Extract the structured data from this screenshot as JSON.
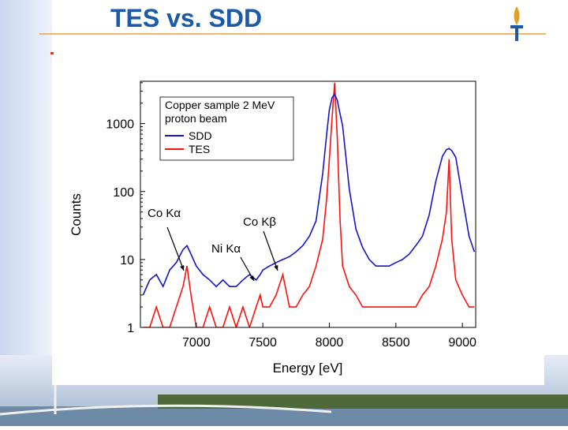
{
  "slide_title": "TES vs. SDD",
  "chart_data": {
    "type": "line",
    "legend_title": [
      "Copper sample 2 MeV",
      "proton beam"
    ],
    "x_label": "Energy [eV]",
    "y_label": "Counts",
    "log_y": true,
    "xlim": [
      6580,
      9100
    ],
    "ylim": [
      1,
      4200
    ],
    "xticks": [
      7000,
      7500,
      8000,
      8500,
      9000
    ],
    "yticks": [
      1,
      10,
      100,
      1000
    ],
    "legend_position": "upper left",
    "x": [
      6600,
      6650,
      6700,
      6750,
      6800,
      6850,
      6900,
      6930,
      6960,
      7000,
      7050,
      7100,
      7150,
      7200,
      7250,
      7300,
      7350,
      7400,
      7450,
      7480,
      7500,
      7550,
      7600,
      7650,
      7700,
      7750,
      7800,
      7850,
      7900,
      7950,
      7980,
      8000,
      8020,
      8040,
      8060,
      8080,
      8100,
      8150,
      8200,
      8250,
      8300,
      8350,
      8400,
      8450,
      8500,
      8550,
      8600,
      8650,
      8700,
      8750,
      8800,
      8850,
      8880,
      8900,
      8920,
      8950,
      9000,
      9050,
      9090
    ],
    "series": [
      {
        "name": "SDD",
        "color": "#1414c8",
        "values": [
          3,
          5,
          6,
          4,
          7,
          9,
          14,
          16,
          12,
          8,
          6,
          5,
          4,
          5,
          4,
          4,
          5,
          6,
          5,
          6,
          7,
          8,
          9,
          10,
          11,
          13,
          16,
          22,
          37,
          185,
          700,
          1600,
          2400,
          2700,
          2200,
          1400,
          930,
          108,
          28,
          15,
          10,
          8,
          8,
          8,
          9,
          10,
          12,
          16,
          22,
          45,
          141,
          330,
          414,
          430,
          400,
          320,
          83,
          22,
          13
        ]
      },
      {
        "name": "TES",
        "color": "#ff1010",
        "values": [
          1,
          1,
          2,
          1,
          1,
          2,
          4,
          8,
          3,
          1,
          1,
          2,
          1,
          1,
          2,
          1,
          2,
          1,
          2,
          3,
          2,
          2,
          3,
          6,
          2,
          2,
          3,
          4,
          8,
          20,
          80,
          300,
          1200,
          4000,
          600,
          40,
          8,
          4,
          3,
          2,
          2,
          2,
          2,
          2,
          2,
          2,
          2,
          2,
          3,
          4,
          8,
          20,
          50,
          300,
          20,
          5,
          3,
          2,
          2
        ]
      }
    ],
    "annotations": [
      "Co Kα",
      "Co Kβ",
      "Ni Kα"
    ]
  }
}
